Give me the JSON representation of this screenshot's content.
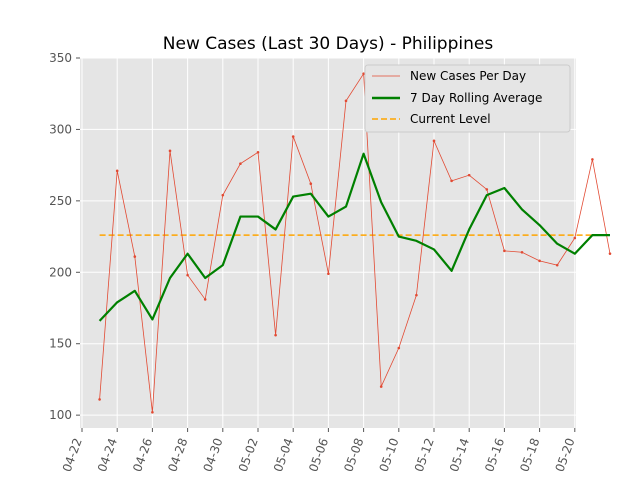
{
  "chart_data": {
    "type": "line",
    "title": "New Cases (Last 30 Days) - Philippines",
    "xlabel": "",
    "ylabel": "",
    "x_start": "2020-04-23",
    "x_ticks": [
      "04-22",
      "04-24",
      "04-26",
      "04-28",
      "04-30",
      "05-02",
      "05-04",
      "05-06",
      "05-08",
      "05-10",
      "05-12",
      "05-14",
      "05-16",
      "05-18",
      "05-20"
    ],
    "y_ticks": [
      100,
      150,
      200,
      250,
      300,
      350
    ],
    "ylim": [
      91,
      350
    ],
    "grid": true,
    "legend_position": "top-right",
    "series": [
      {
        "name": "New Cases Per Day",
        "color": "#e24a33",
        "values": [
          111,
          271,
          211,
          102,
          285,
          198,
          181,
          254,
          276,
          284,
          156,
          295,
          262,
          199,
          320,
          339,
          120,
          147,
          184,
          292,
          264,
          268,
          258,
          215,
          214,
          208,
          205,
          224,
          279,
          213
        ]
      },
      {
        "name": "7 Day Rolling Average",
        "color": "#008000",
        "values": [
          166,
          179,
          187,
          167,
          196,
          213,
          196,
          205,
          239,
          239,
          230,
          253,
          255,
          239,
          246,
          283,
          249,
          225,
          222,
          216,
          201,
          230,
          254,
          259,
          244,
          233,
          220,
          213,
          226,
          226
        ]
      },
      {
        "name": "Current Level",
        "color": "#ffa500",
        "constant": 226
      }
    ]
  }
}
